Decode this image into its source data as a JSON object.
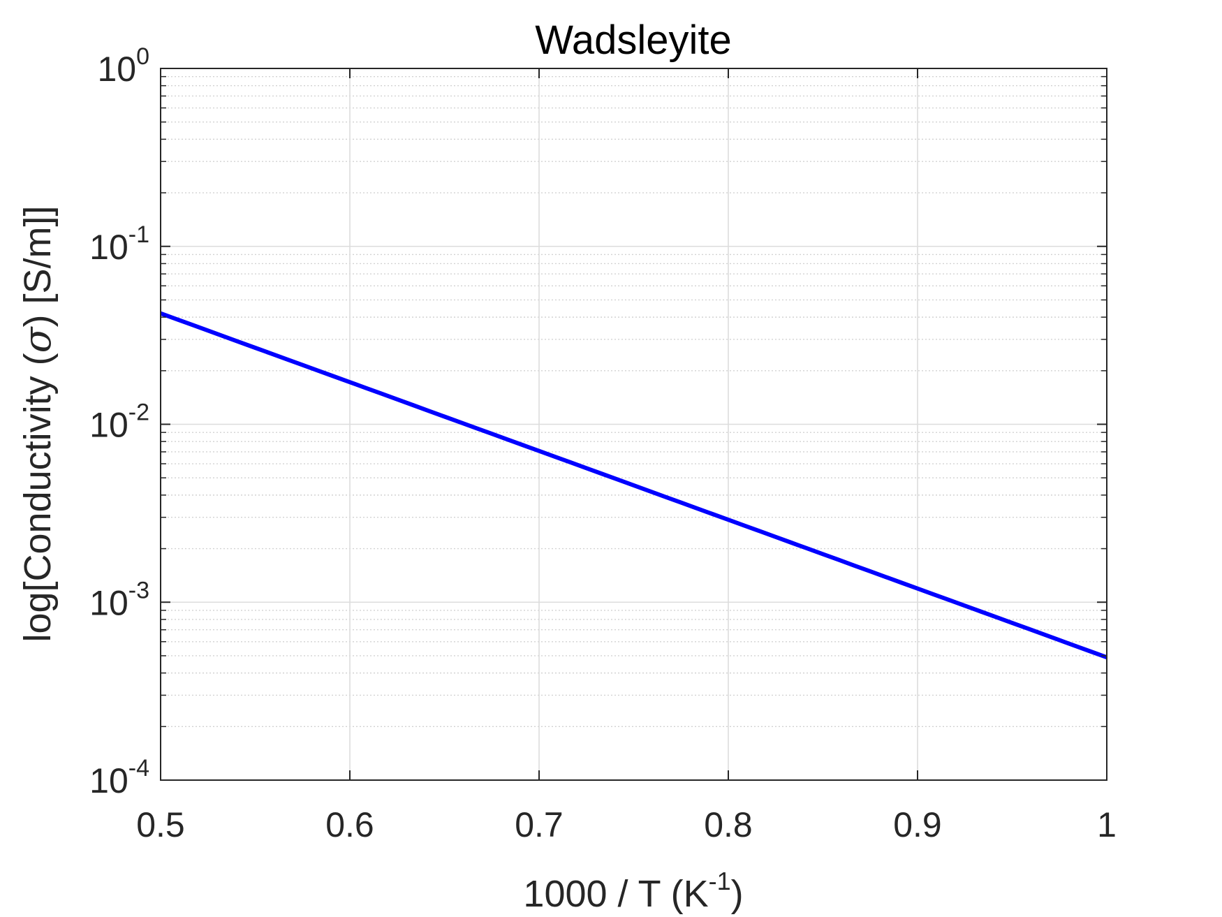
{
  "chart_data": {
    "type": "line",
    "title": "Wadsleyite",
    "xlabel": {
      "base": "1000 / T (K",
      "sup": "-1",
      "tail": ")"
    },
    "ylabel": {
      "pre": "log[Conductivity (",
      "sym": "σ",
      "post": ") [S/m]]"
    },
    "x_scale": "linear",
    "y_scale": "log",
    "xlim": [
      0.5,
      1.0
    ],
    "ylim": [
      0.0001,
      1
    ],
    "x_ticks": [
      0.5,
      0.6,
      0.7,
      0.8,
      0.9,
      1.0
    ],
    "x_tick_labels": [
      "0.5",
      "0.6",
      "0.7",
      "0.8",
      "0.9",
      "1"
    ],
    "y_ticks": [
      {
        "value": 1,
        "base": "10",
        "exp": "0"
      },
      {
        "value": 0.1,
        "base": "10",
        "exp": "-1"
      },
      {
        "value": 0.01,
        "base": "10",
        "exp": "-2"
      },
      {
        "value": 0.001,
        "base": "10",
        "exp": "-3"
      },
      {
        "value": 0.0001,
        "base": "10",
        "exp": "-4"
      }
    ],
    "grid": true,
    "minor_grid": true,
    "series": [
      {
        "color": "#0000ff",
        "x": [
          0.5,
          1.0
        ],
        "y": [
          0.042,
          0.00049
        ]
      }
    ]
  }
}
